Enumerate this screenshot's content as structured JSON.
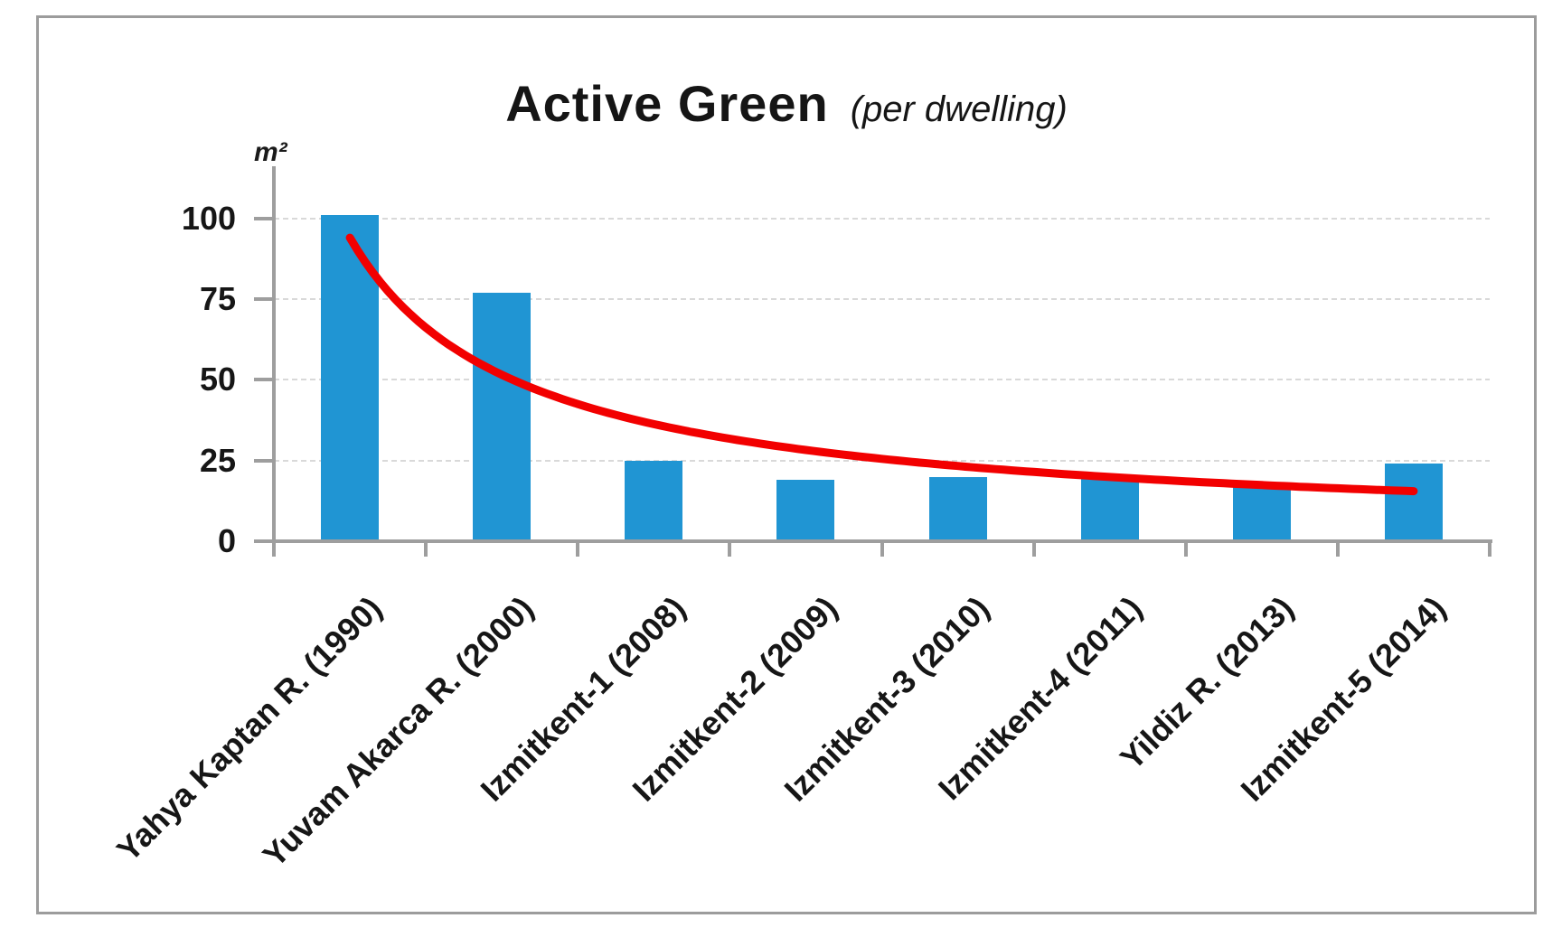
{
  "chart_data": {
    "type": "bar",
    "title": "Active Green",
    "subtitle": "(per dwelling)",
    "y_unit_label": "m²",
    "categories": [
      "Yahya Kaptan R. (1990)",
      "Yuvam Akarca R. (2000)",
      "Izmitkent-1 (2008)",
      "Izmitkent-2 (2009)",
      "Izmitkent-3 (2010)",
      "Izmitkent-4 (2011)",
      "Yildiz R. (2013)",
      "Izmitkent-5 (2014)"
    ],
    "values": [
      101,
      77,
      25,
      19,
      20,
      20,
      17,
      24
    ],
    "yticks": [
      0,
      25,
      50,
      75,
      100
    ],
    "ylim": [
      0,
      115
    ],
    "xlabel": "",
    "ylabel": "m²",
    "grid": "horizontal-dashed",
    "legend_position": "none",
    "bar_color": "#2095d3",
    "trendline": {
      "type": "power",
      "color": "#f20000",
      "points": [
        94,
        51.5,
        36.3,
        28.2,
        23.3,
        19.9,
        17.4,
        15.5
      ]
    }
  },
  "colors": {
    "bar": "#2095d3",
    "trendline": "#f20000",
    "axis": "#9e9e9e",
    "gridline": "#d9d9d9",
    "text": "#161616",
    "frame_border": "#9c9c9c",
    "background": "#ffffff"
  }
}
